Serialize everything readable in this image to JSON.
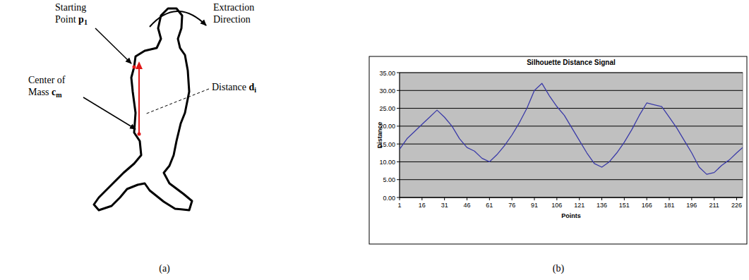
{
  "diagram": {
    "starting_point": {
      "lines": [
        "Starting",
        "Point "
      ],
      "symbol": "p",
      "sub": "1"
    },
    "extraction_direction": {
      "lines": [
        "Extraction",
        "Direction"
      ]
    },
    "center_of_mass": {
      "lines": [
        "Center of",
        "Mass "
      ],
      "symbol": "c",
      "sub": "m"
    },
    "distance": {
      "lines": [
        "Distance "
      ],
      "symbol": "d",
      "sub": "i"
    },
    "panels": [
      "(a)",
      "(b)"
    ]
  },
  "chart_data": {
    "type": "line",
    "title": "Silhouette Distance Signal",
    "x_label": "Points",
    "y_label": "Distance",
    "color": "#3a3aa8",
    "grid": true,
    "x": [
      1,
      6,
      11,
      16,
      21,
      26,
      31,
      36,
      41,
      46,
      51,
      56,
      61,
      66,
      71,
      76,
      81,
      86,
      91,
      96,
      101,
      106,
      111,
      116,
      121,
      126,
      131,
      136,
      141,
      146,
      151,
      156,
      161,
      166,
      171,
      176,
      181,
      186,
      191,
      196,
      201,
      206,
      211,
      216,
      221,
      226,
      230
    ],
    "values": [
      13.5,
      16.5,
      18.5,
      20.5,
      22.5,
      24.5,
      22.5,
      20,
      16.5,
      14,
      13,
      11,
      10,
      12,
      14.5,
      17.5,
      21,
      25,
      30,
      32,
      28.5,
      25.5,
      23,
      19.5,
      16,
      12.5,
      9.5,
      8.5,
      10,
      12.5,
      15.5,
      19,
      23,
      26.5,
      26,
      25.5,
      22.5,
      19.5,
      16,
      12.5,
      8.5,
      6.5,
      7,
      9,
      10.5,
      12.5,
      14
    ],
    "xlim": [
      1,
      230
    ],
    "xticks": [
      1,
      16,
      31,
      46,
      61,
      76,
      91,
      106,
      121,
      136,
      151,
      166,
      181,
      196,
      211,
      226
    ],
    "ylim": [
      0,
      35
    ],
    "yticks": [
      {
        "value": 0,
        "label": "0.00"
      },
      {
        "value": 5,
        "label": "5.00"
      },
      {
        "value": 10,
        "label": "10.00"
      },
      {
        "value": 15,
        "label": "15.00"
      },
      {
        "value": 20,
        "label": "20.00"
      },
      {
        "value": 25,
        "label": "25.00"
      },
      {
        "value": 30,
        "label": "30.00"
      },
      {
        "value": 35,
        "label": "35.00"
      }
    ]
  }
}
